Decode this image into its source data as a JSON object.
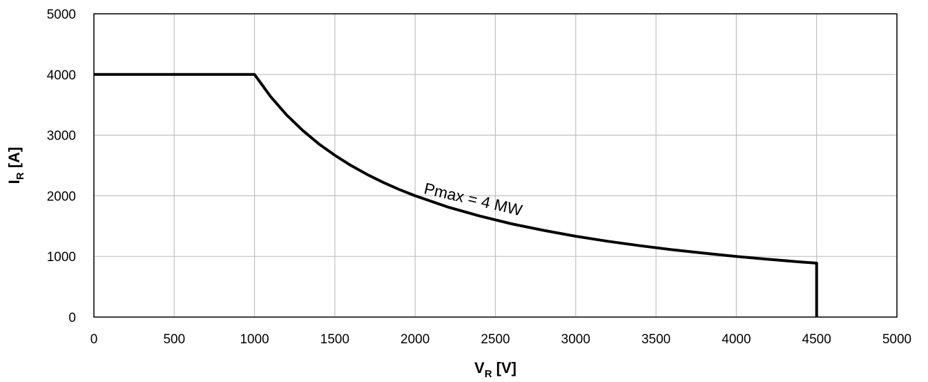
{
  "chart_data": {
    "type": "line",
    "xlabel_main": "V",
    "xlabel_sub": "R",
    "xlabel_unit": " [V]",
    "ylabel_main": "I",
    "ylabel_sub": "R",
    "ylabel_unit": " [A]",
    "xlim": [
      0,
      5000
    ],
    "ylim": [
      0,
      5000
    ],
    "x_ticks": [
      "0",
      "500",
      "1000",
      "1500",
      "2000",
      "2500",
      "3000",
      "3500",
      "4000",
      "4500",
      "5000"
    ],
    "y_ticks": [
      "0",
      "1000",
      "2000",
      "3000",
      "4000",
      "5000"
    ],
    "grid": true,
    "legend": "none",
    "series": [
      {
        "color": "#000000",
        "points": [
          [
            0,
            4000
          ],
          [
            1000,
            4000
          ],
          [
            1100,
            3636
          ],
          [
            1200,
            3333
          ],
          [
            1300,
            3077
          ],
          [
            1400,
            2857
          ],
          [
            1500,
            2667
          ],
          [
            1600,
            2500
          ],
          [
            1700,
            2353
          ],
          [
            1800,
            2222
          ],
          [
            1900,
            2105
          ],
          [
            2000,
            2000
          ],
          [
            2200,
            1818
          ],
          [
            2400,
            1667
          ],
          [
            2600,
            1538
          ],
          [
            2800,
            1429
          ],
          [
            3000,
            1333
          ],
          [
            3200,
            1250
          ],
          [
            3400,
            1176
          ],
          [
            3600,
            1111
          ],
          [
            3800,
            1053
          ],
          [
            4000,
            1000
          ],
          [
            4200,
            952
          ],
          [
            4400,
            909
          ],
          [
            4500,
            889
          ],
          [
            4500,
            0
          ]
        ]
      }
    ],
    "annotations": [
      {
        "text": "Pmax = 4 MW",
        "x": 2050,
        "y": 2040,
        "rotate": 13
      }
    ]
  }
}
